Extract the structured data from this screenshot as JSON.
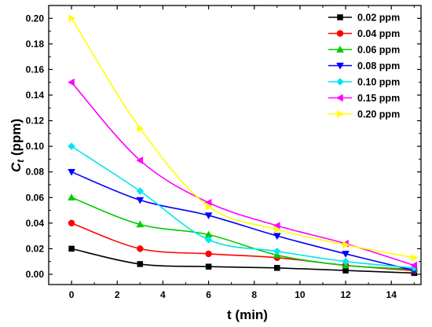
{
  "chart_data": {
    "type": "scatter",
    "xlabel": "t (min)",
    "ylabel": {
      "main": "C",
      "sub": "t",
      "unit": " (ppm)"
    },
    "xlim": [
      -1,
      15.3
    ],
    "ylim": [
      -0.008,
      0.21
    ],
    "xticks": [
      "0",
      "2",
      "4",
      "6",
      "8",
      "10",
      "12",
      "14"
    ],
    "yticks": [
      "0.00",
      "0.02",
      "0.04",
      "0.06",
      "0.08",
      "0.10",
      "0.12",
      "0.14",
      "0.16",
      "0.18",
      "0.20"
    ],
    "x": [
      0,
      3,
      6,
      9,
      12,
      15
    ],
    "legend_position": "top-right",
    "series": [
      {
        "name": "0.02 ppm",
        "color": "#000000",
        "marker": "square",
        "values": [
          0.02,
          0.008,
          0.006,
          0.005,
          0.003,
          0.001
        ]
      },
      {
        "name": "0.04 ppm",
        "color": "#ff0000",
        "marker": "circle",
        "values": [
          0.04,
          0.02,
          0.016,
          0.013,
          0.007,
          0.003
        ]
      },
      {
        "name": "0.06 ppm",
        "color": "#00cc00",
        "marker": "triangle-up",
        "values": [
          0.06,
          0.039,
          0.031,
          0.015,
          0.007,
          0.004
        ]
      },
      {
        "name": "0.08 ppm",
        "color": "#0000ff",
        "marker": "triangle-down",
        "values": [
          0.08,
          0.058,
          0.046,
          0.03,
          0.016,
          0.003
        ]
      },
      {
        "name": "0.10 ppm",
        "color": "#00e5ee",
        "marker": "diamond",
        "values": [
          0.1,
          0.065,
          0.027,
          0.018,
          0.01,
          0.005
        ]
      },
      {
        "name": "0.15 ppm",
        "color": "#ff00ff",
        "marker": "triangle-left",
        "values": [
          0.15,
          0.089,
          0.056,
          0.038,
          0.024,
          0.007
        ]
      },
      {
        "name": "0.20 ppm",
        "color": "#ffff00",
        "marker": "triangle-right",
        "values": [
          0.2,
          0.114,
          0.053,
          0.035,
          0.023,
          0.013
        ]
      }
    ]
  }
}
